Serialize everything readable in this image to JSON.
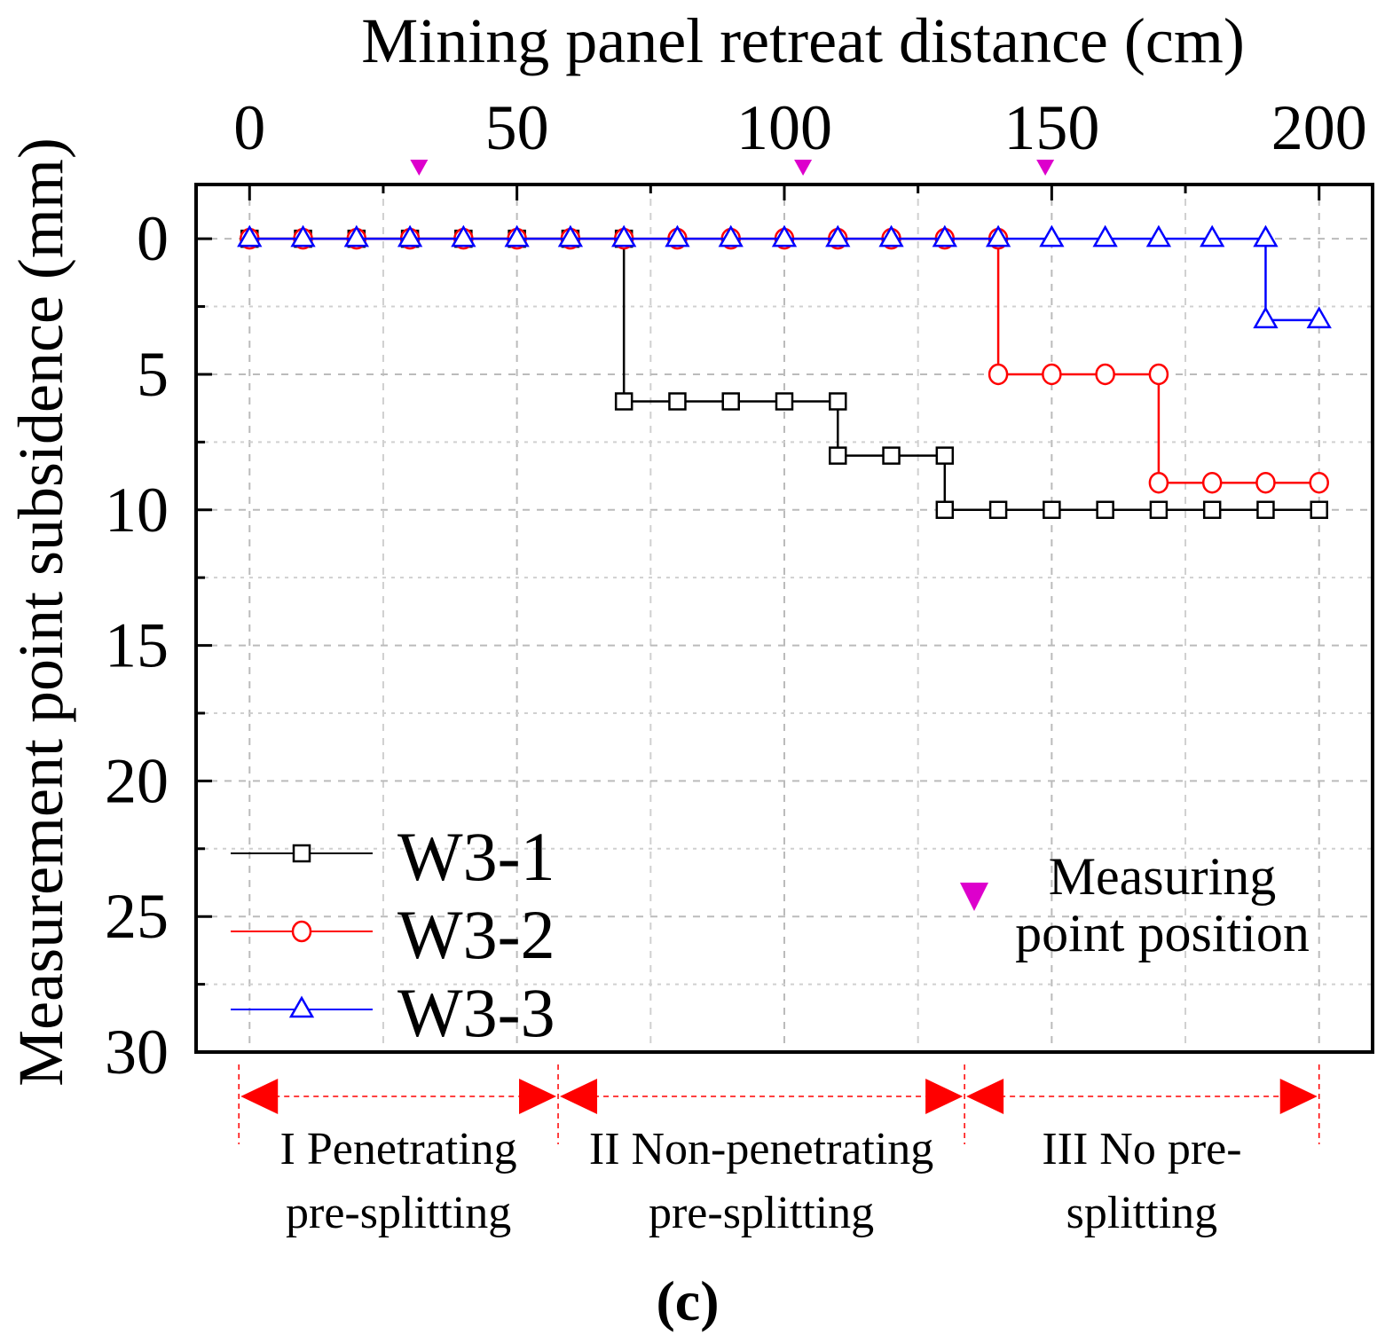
{
  "chart_data": {
    "type": "line",
    "title": "",
    "xlabel": "Mining panel retreat distance (cm)",
    "ylabel": "Measurement point subsidence (mm)",
    "xlim": [
      -10,
      210
    ],
    "ylim": [
      -2,
      30
    ],
    "y_inverted": true,
    "x_axis_position": "top",
    "xticks": [
      0,
      50,
      100,
      150,
      200
    ],
    "yticks": [
      0,
      5,
      10,
      15,
      20,
      25,
      30
    ],
    "grid": true,
    "series": [
      {
        "name": "W3-1",
        "color": "#000000",
        "marker": "square",
        "x": [
          0,
          10,
          20,
          30,
          40,
          50,
          60,
          70,
          70,
          80,
          90,
          100,
          110,
          110,
          120,
          130,
          130,
          140,
          150,
          160,
          170,
          180,
          190,
          200
        ],
        "y": [
          0,
          0,
          0,
          0,
          0,
          0,
          0,
          0,
          6,
          6,
          6,
          6,
          6,
          8,
          8,
          8,
          10,
          10,
          10,
          10,
          10,
          10,
          10,
          10
        ]
      },
      {
        "name": "W3-2",
        "color": "#ff0000",
        "marker": "circle",
        "x": [
          0,
          10,
          20,
          30,
          40,
          50,
          60,
          70,
          80,
          90,
          100,
          110,
          120,
          130,
          140,
          140,
          150,
          160,
          170,
          170,
          180,
          190,
          200
        ],
        "y": [
          0,
          0,
          0,
          0,
          0,
          0,
          0,
          0,
          0,
          0,
          0,
          0,
          0,
          0,
          0,
          5,
          5,
          5,
          5,
          9,
          9,
          9,
          9
        ]
      },
      {
        "name": "W3-3",
        "color": "#0000ff",
        "marker": "triangle",
        "x": [
          0,
          10,
          20,
          30,
          40,
          50,
          60,
          70,
          80,
          90,
          100,
          110,
          120,
          130,
          140,
          150,
          160,
          170,
          180,
          190,
          190,
          200
        ],
        "y": [
          0,
          0,
          0,
          0,
          0,
          0,
          0,
          0,
          0,
          0,
          0,
          0,
          0,
          0,
          0,
          0,
          0,
          0,
          0,
          0,
          3,
          3
        ]
      }
    ],
    "measuring_points": {
      "label_line1": "Measuring",
      "label_line2": "point position",
      "color": "#dd00cc",
      "x": [
        31.7,
        103.5,
        148.8
      ]
    },
    "zones": [
      {
        "line1": "I Penetrating",
        "line2": "pre-splitting",
        "from": -2,
        "to": 57.7
      },
      {
        "line1": "II Non-penetrating",
        "line2": "pre-splitting",
        "from": 57.7,
        "to": 133.7
      },
      {
        "line1": "III No pre-",
        "line2": "splitting",
        "from": 133.7,
        "to": 200
      }
    ],
    "panel_label": "(c)"
  }
}
